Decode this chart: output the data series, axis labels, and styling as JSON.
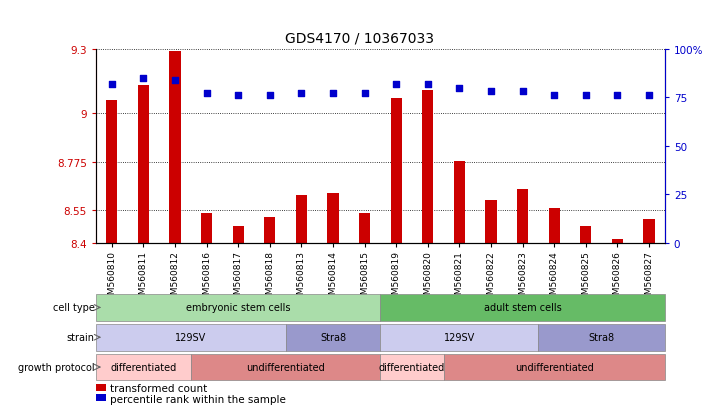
{
  "title": "GDS4170 / 10367033",
  "samples": [
    "GSM560810",
    "GSM560811",
    "GSM560812",
    "GSM560816",
    "GSM560817",
    "GSM560818",
    "GSM560813",
    "GSM560814",
    "GSM560815",
    "GSM560819",
    "GSM560820",
    "GSM560821",
    "GSM560822",
    "GSM560823",
    "GSM560824",
    "GSM560825",
    "GSM560826",
    "GSM560827"
  ],
  "bar_values": [
    9.06,
    9.13,
    9.29,
    8.54,
    8.48,
    8.52,
    8.62,
    8.63,
    8.54,
    9.07,
    9.11,
    8.78,
    8.6,
    8.65,
    8.56,
    8.48,
    8.42,
    8.51
  ],
  "dot_values": [
    82,
    85,
    84,
    77,
    76,
    76,
    77,
    77,
    77,
    82,
    82,
    80,
    78,
    78,
    76,
    76,
    76,
    76
  ],
  "ymin": 8.4,
  "ymax": 9.3,
  "yticks": [
    8.4,
    8.55,
    8.775,
    9.0,
    9.3
  ],
  "ytick_labels": [
    "8.4",
    "8.55",
    "8.775",
    "9",
    "9.3"
  ],
  "y2min": 0,
  "y2max": 100,
  "y2ticks": [
    0,
    25,
    50,
    75,
    100
  ],
  "y2tick_labels": [
    "0",
    "25",
    "50",
    "75",
    "100%"
  ],
  "bar_color": "#cc0000",
  "dot_color": "#0000cc",
  "left_tick_color": "#cc0000",
  "right_tick_color": "#0000cc",
  "cell_type_row": {
    "label": "cell type",
    "segments": [
      {
        "text": "embryonic stem cells",
        "start": 0,
        "end": 9,
        "color": "#aaddaa"
      },
      {
        "text": "adult stem cells",
        "start": 9,
        "end": 18,
        "color": "#66bb66"
      }
    ]
  },
  "strain_row": {
    "label": "strain",
    "segments": [
      {
        "text": "129SV",
        "start": 0,
        "end": 6,
        "color": "#ccccee"
      },
      {
        "text": "Stra8",
        "start": 6,
        "end": 9,
        "color": "#9999cc"
      },
      {
        "text": "129SV",
        "start": 9,
        "end": 14,
        "color": "#ccccee"
      },
      {
        "text": "Stra8",
        "start": 14,
        "end": 18,
        "color": "#9999cc"
      }
    ]
  },
  "growth_protocol_row": {
    "label": "growth protocol",
    "segments": [
      {
        "text": "differentiated",
        "start": 0,
        "end": 3,
        "color": "#ffcccc"
      },
      {
        "text": "undifferentiated",
        "start": 3,
        "end": 9,
        "color": "#dd8888"
      },
      {
        "text": "differentiated",
        "start": 9,
        "end": 11,
        "color": "#ffcccc"
      },
      {
        "text": "undifferentiated",
        "start": 11,
        "end": 18,
        "color": "#dd8888"
      }
    ]
  },
  "legend_bar_color": "#cc0000",
  "legend_dot_color": "#0000cc",
  "legend_bar_label": "transformed count",
  "legend_dot_label": "percentile rank within the sample",
  "background_color": "#ffffff",
  "grid_color": "#000000",
  "title_fontsize": 10,
  "axis_fontsize": 7.5,
  "label_fontsize": 7.5,
  "bar_width": 0.35
}
